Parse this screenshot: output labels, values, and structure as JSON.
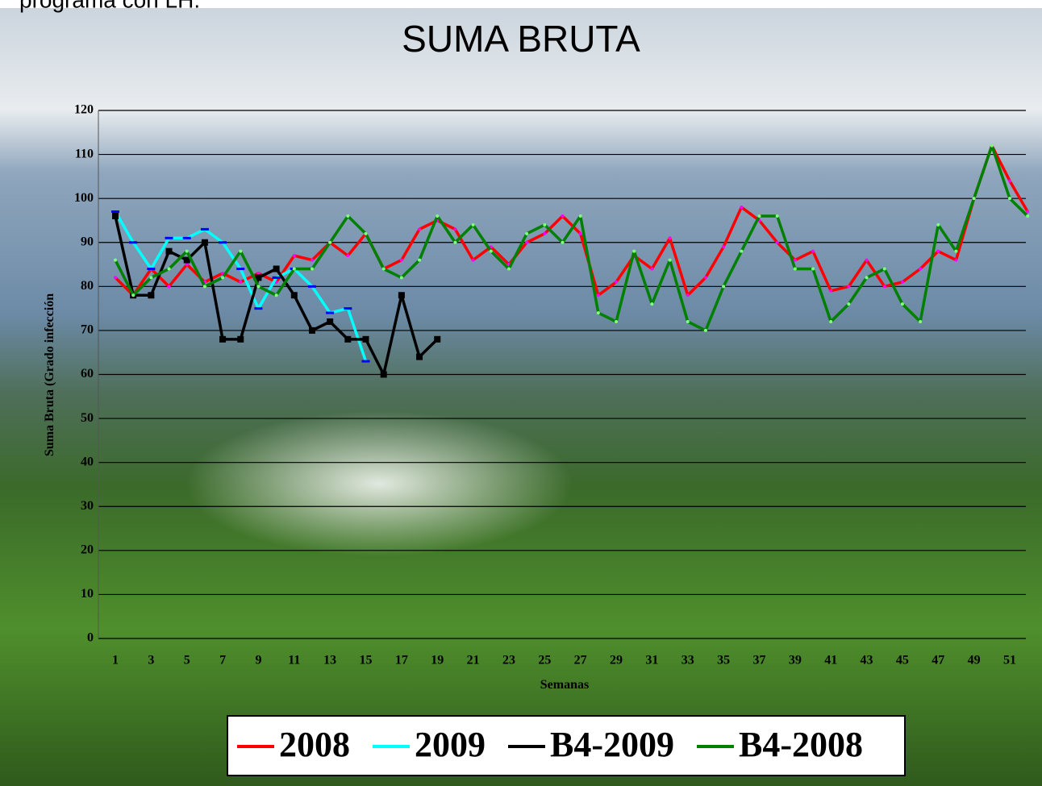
{
  "page_header": "programa con LH.",
  "chart_data": {
    "type": "line",
    "title": "SUMA BRUTA",
    "x_label": "Semanas",
    "y_label": "Suma Bruta (Grado infección",
    "categories": [
      "1",
      null,
      "3",
      null,
      "5",
      null,
      "7",
      null,
      "9",
      null,
      "11",
      null,
      "13",
      null,
      "15",
      null,
      "17",
      null,
      "19",
      null,
      "21",
      null,
      "23",
      null,
      "25",
      null,
      "27",
      null,
      "29",
      null,
      "31",
      null,
      "33",
      null,
      "35",
      null,
      "37",
      null,
      "39",
      null,
      "41",
      null,
      "43",
      null,
      "45",
      null,
      "47",
      null,
      "49",
      null,
      "51",
      null
    ],
    "series": [
      {
        "name": "2008",
        "color": "#ff0000",
        "values": [
          82,
          78,
          84,
          80,
          85,
          81,
          83,
          81,
          83,
          81,
          87,
          86,
          90,
          87,
          92,
          84,
          86,
          93,
          95,
          93,
          86,
          89,
          85,
          90,
          92,
          96,
          92,
          78,
          81,
          87,
          84,
          91,
          78,
          82,
          89,
          98,
          95,
          90,
          86,
          88,
          79,
          80,
          86,
          80,
          81,
          84,
          88,
          86,
          100,
          112,
          104,
          97
        ]
      },
      {
        "name": "2009",
        "color": "#00ffff",
        "values": [
          97,
          90,
          84,
          91,
          91,
          93,
          90,
          84,
          75,
          82,
          84,
          80,
          74,
          75,
          63,
          null,
          null,
          null,
          null,
          null,
          null,
          null,
          null,
          null,
          null,
          null,
          null,
          null,
          null,
          null,
          null,
          null,
          null,
          null,
          null,
          null,
          null,
          null,
          null,
          null,
          null,
          null,
          null,
          null,
          null,
          null,
          null,
          null,
          null,
          null,
          null,
          null
        ]
      },
      {
        "name": "B4-2009",
        "color": "#000000",
        "values": [
          96,
          78,
          78,
          88,
          86,
          90,
          68,
          68,
          82,
          84,
          78,
          70,
          72,
          68,
          68,
          60,
          78,
          64,
          68,
          null,
          null,
          null,
          null,
          null,
          null,
          null,
          null,
          null,
          null,
          null,
          null,
          null,
          null,
          null,
          null,
          null,
          null,
          null,
          null,
          null,
          null,
          null,
          null,
          null,
          null,
          null,
          null,
          null,
          null,
          null,
          null,
          null
        ]
      },
      {
        "name": "B4-2008",
        "color": "#008000",
        "values": [
          86,
          78,
          82,
          84,
          88,
          80,
          82,
          88,
          80,
          78,
          84,
          84,
          90,
          96,
          92,
          84,
          82,
          86,
          96,
          90,
          94,
          88,
          84,
          92,
          94,
          90,
          96,
          74,
          72,
          88,
          76,
          86,
          72,
          70,
          80,
          88,
          96,
          96,
          84,
          84,
          72,
          76,
          82,
          84,
          76,
          72,
          94,
          88,
          100,
          112,
          100,
          96
        ]
      }
    ],
    "ylim": [
      0,
      120
    ],
    "yticks": [
      0,
      10,
      20,
      30,
      40,
      50,
      60,
      70,
      80,
      90,
      100,
      110,
      120
    ],
    "grid": true,
    "legend": "bottom"
  }
}
